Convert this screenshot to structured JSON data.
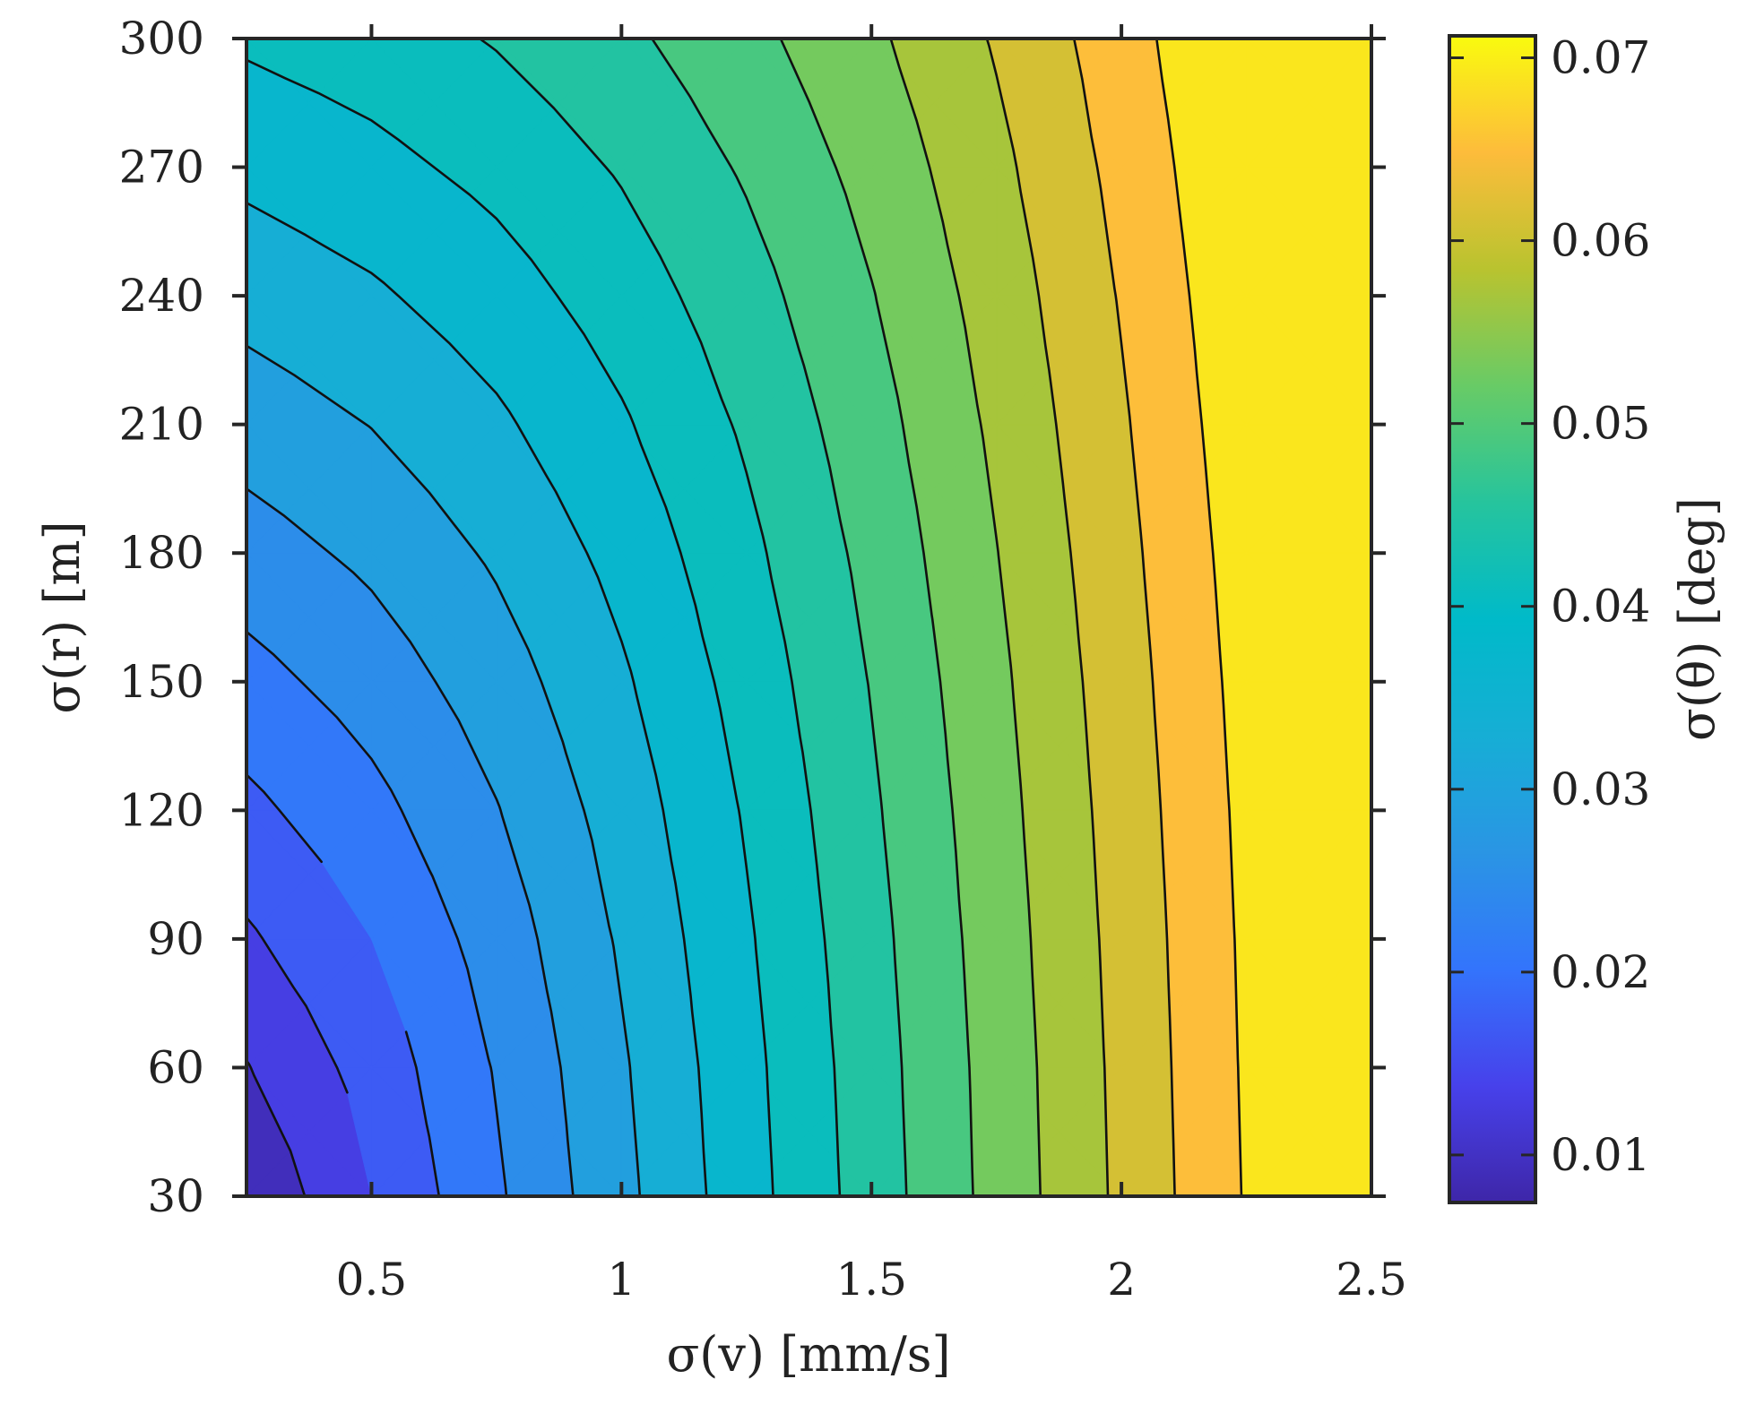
{
  "chart_data": {
    "type": "heatmap",
    "subtype": "filled-contour",
    "title": "",
    "xlabel": "σ(v) [mm/s]",
    "ylabel": "σ(r) [m]",
    "colorbar_label": "σ(θ) [deg]",
    "xlim": [
      0.25,
      2.5
    ],
    "ylim": [
      30,
      300
    ],
    "xticks": [
      0.5,
      1,
      1.5,
      2,
      2.5
    ],
    "xtick_labels": [
      "0.5",
      "1",
      "1.5",
      "2",
      "2.5"
    ],
    "yticks": [
      30,
      60,
      90,
      120,
      150,
      180,
      210,
      240,
      270,
      300
    ],
    "ytick_labels": [
      "30",
      "60",
      "90",
      "120",
      "150",
      "180",
      "210",
      "240",
      "270",
      "300"
    ],
    "colorbar_range": [
      0.0074,
      0.0712
    ],
    "colorbar_ticks": [
      0.01,
      0.02,
      0.03,
      0.04,
      0.05,
      0.06,
      0.07
    ],
    "colorbar_tick_labels": [
      "0.01",
      "0.02",
      "0.03",
      "0.04",
      "0.05",
      "0.06",
      "0.07"
    ],
    "contour_levels": [
      0.011,
      0.015,
      0.019,
      0.023,
      0.027,
      0.031,
      0.035,
      0.039,
      0.043,
      0.047,
      0.051,
      0.055,
      0.059,
      0.063,
      0.067
    ],
    "colormap": "parula",
    "x": [
      0.25,
      0.5,
      0.75,
      1.0,
      1.25,
      1.5,
      1.75,
      2.0,
      2.25,
      2.5
    ],
    "y": [
      30,
      60,
      90,
      120,
      150,
      180,
      210,
      240,
      270,
      300
    ],
    "z": [
      [
        0.0075,
        0.015,
        0.0224,
        0.0299,
        0.0374,
        0.0449,
        0.0524,
        0.0598,
        0.0673,
        0.0748
      ],
      [
        0.0108,
        0.0166,
        0.0233,
        0.0305,
        0.0378,
        0.0452,
        0.0526,
        0.06,
        0.0675,
        0.075
      ],
      [
        0.0144,
        0.019,
        0.0248,
        0.0315,
        0.0385,
        0.0457,
        0.053,
        0.0603,
        0.0677,
        0.0751
      ],
      [
        0.018,
        0.0218,
        0.0268,
        0.0328,
        0.0394,
        0.0464,
        0.0535,
        0.0607,
        0.068,
        0.0754
      ],
      [
        0.0216,
        0.0248,
        0.0291,
        0.0344,
        0.0406,
        0.0472,
        0.0541,
        0.0612,
        0.0684,
        0.0757
      ],
      [
        0.0252,
        0.0279,
        0.0316,
        0.0363,
        0.042,
        0.0482,
        0.0549,
        0.0618,
        0.0689,
        0.0761
      ],
      [
        0.0288,
        0.0311,
        0.0343,
        0.0385,
        0.0436,
        0.0494,
        0.0558,
        0.0625,
        0.0695,
        0.0766
      ],
      [
        0.0324,
        0.0344,
        0.0372,
        0.0409,
        0.0454,
        0.0508,
        0.0568,
        0.0633,
        0.0701,
        0.0771
      ],
      [
        0.036,
        0.0378,
        0.0402,
        0.0434,
        0.0475,
        0.0524,
        0.058,
        0.0642,
        0.0708,
        0.0777
      ],
      [
        0.0396,
        0.0411,
        0.0433,
        0.0461,
        0.0498,
        0.0542,
        0.0594,
        0.0652,
        0.0716,
        0.0783
      ]
    ]
  }
}
